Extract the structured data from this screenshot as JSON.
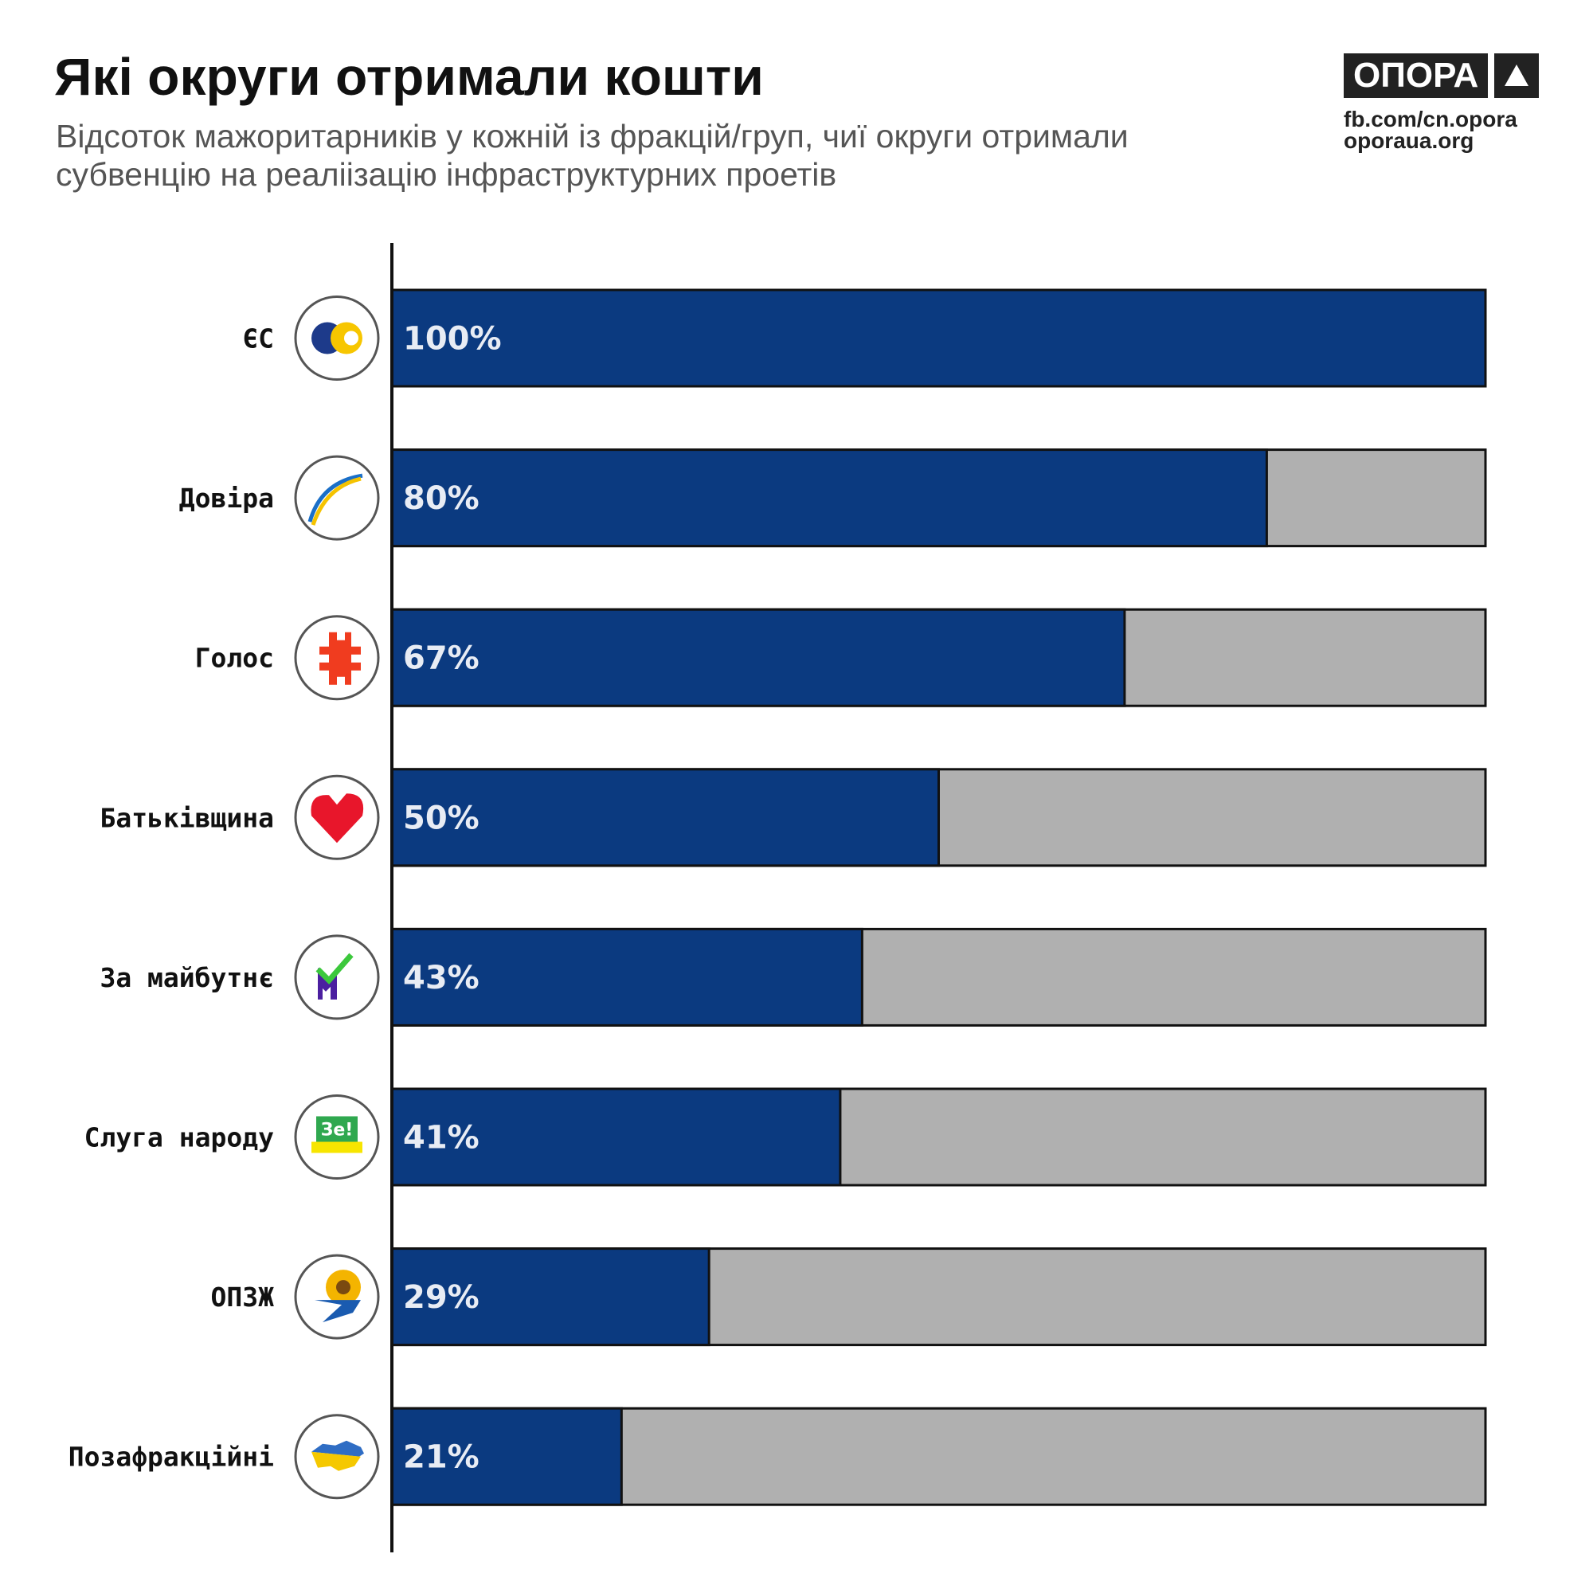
{
  "header": {
    "title": "Які округи отримали кошти",
    "subtitle_lines": [
      "Відсоток мажоритарників у кожній із фракцій/груп, чиї округи отримали",
      "субвенцію на реаліізацію інфраструктурних проетів"
    ]
  },
  "brand": {
    "logo_text": "ОПОРА",
    "links": [
      "fb.com/cn.opora",
      "oporaua.org"
    ]
  },
  "colors": {
    "bar": "#0b3a80",
    "rest": "#b0b0b0"
  },
  "chart_data": {
    "type": "bar",
    "orientation": "horizontal",
    "stacked_to": 100,
    "categories": [
      "ЄС",
      "Довіра",
      "Голос",
      "Батьківщина",
      "За майбутнє",
      "Слуга народу",
      "ОПЗЖ",
      "Позафракційні"
    ],
    "icons": [
      "es-logo-icon",
      "dovira-logo-icon",
      "holos-logo-icon",
      "batkivshchyna-heart-icon",
      "za-maibutnie-logo-icon",
      "sluha-narodu-ze-icon",
      "opzzh-sunflower-icon",
      "ukraine-map-icon"
    ],
    "values": [
      100,
      80,
      67,
      50,
      43,
      41,
      29,
      21
    ],
    "labels": [
      "100%",
      "80%",
      "67%",
      "50%",
      "43%",
      "41%",
      "29%",
      "21%"
    ],
    "xlim": [
      0,
      100
    ]
  }
}
